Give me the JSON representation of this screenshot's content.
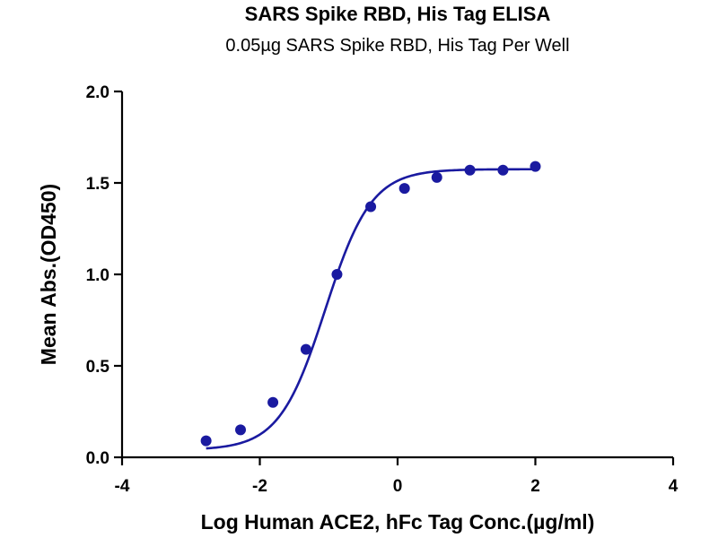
{
  "chart_data": {
    "type": "scatter",
    "title": "SARS Spike RBD, His Tag ELISA",
    "subtitle": "0.05µg SARS Spike RBD, His Tag Per Well",
    "xlabel": "Log Human ACE2, hFc Tag Conc.(µg/ml)",
    "ylabel": "Mean Abs.(OD450)",
    "xlim": [
      -4,
      4
    ],
    "ylim": [
      0,
      2
    ],
    "x_ticks": [
      -4,
      -2,
      0,
      2,
      4
    ],
    "x_tick_labels": [
      "-4",
      "-2",
      "0",
      "2",
      "4"
    ],
    "y_ticks": [
      0,
      0.5,
      1.0,
      1.5,
      2.0
    ],
    "y_tick_labels": [
      "0.0",
      "0.5",
      "1.0",
      "1.5",
      "2.0"
    ],
    "grid": false,
    "color": "#1a1aa0",
    "series": [
      {
        "x": [
          -2.78,
          -2.28,
          -1.81,
          -1.33,
          -0.88,
          -0.39,
          0.1,
          0.57,
          1.05,
          1.53,
          2.0
        ],
        "y": [
          0.09,
          0.15,
          0.3,
          0.59,
          1.0,
          1.37,
          1.47,
          1.53,
          1.57,
          1.57,
          1.59
        ]
      }
    ],
    "fit_curve": {
      "type": "four-parameter logistic",
      "bottom": 0.04,
      "top": 1.575,
      "log_ec50": -1.05,
      "hill_slope": 1.3,
      "x_range": [
        -2.78,
        2.0
      ]
    }
  }
}
